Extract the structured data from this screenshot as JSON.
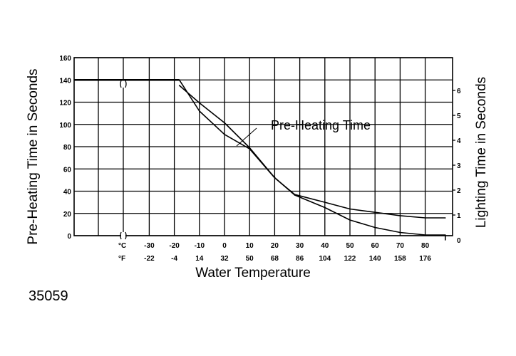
{
  "chart_data": {
    "type": "line",
    "title": "",
    "xlabel": "Water Temperature",
    "ylabel": "Pre-Heating Time in Seconds",
    "ylabel_right": "Lighting Time in Seconds",
    "x_unit_rows": {
      "celsius_label": "°C",
      "fahrenheit_label": "°F"
    },
    "x_ticks_c": [
      "-30",
      "-20",
      "-10",
      "0",
      "10",
      "20",
      "30",
      "40",
      "50",
      "60",
      "70",
      "80"
    ],
    "x_ticks_f": [
      "-22",
      "-4",
      "14",
      "32",
      "50",
      "68",
      "86",
      "104",
      "122",
      "140",
      "158",
      "176"
    ],
    "x_axis_break": true,
    "y_ticks": [
      "0",
      "20",
      "40",
      "60",
      "80",
      "100",
      "120",
      "140",
      "160"
    ],
    "y_ticks_right": [
      "0",
      "1",
      "2",
      "3",
      "4",
      "5",
      "6"
    ],
    "ylim": [
      0,
      160
    ],
    "ylim_right": [
      0,
      7
    ],
    "grid": true,
    "annotation": "Pre-Heating Time",
    "series": [
      {
        "name": "Pre-Heating Time",
        "axis": "left",
        "x": [
          -18,
          -10,
          0,
          10,
          20,
          28,
          40,
          50,
          60,
          70,
          80,
          88
        ],
        "y": [
          140,
          112,
          91,
          78,
          52,
          37,
          30,
          24,
          21,
          18,
          16,
          16
        ]
      },
      {
        "axis": "right",
        "x": [
          -18,
          -10,
          0,
          10,
          20,
          28,
          40,
          50,
          60,
          70,
          80,
          88,
          88
        ],
        "y": [
          6.2,
          5.5,
          4.7,
          3.7,
          2.5,
          1.8,
          1.3,
          0.8,
          0.5,
          0.3,
          0.2,
          0.2,
          0
        ]
      }
    ],
    "flat_left_segment": {
      "y": 140,
      "until_x": -18
    }
  },
  "figure_number": "35059",
  "colors": {
    "ink": "#000000",
    "background": "#ffffff"
  }
}
